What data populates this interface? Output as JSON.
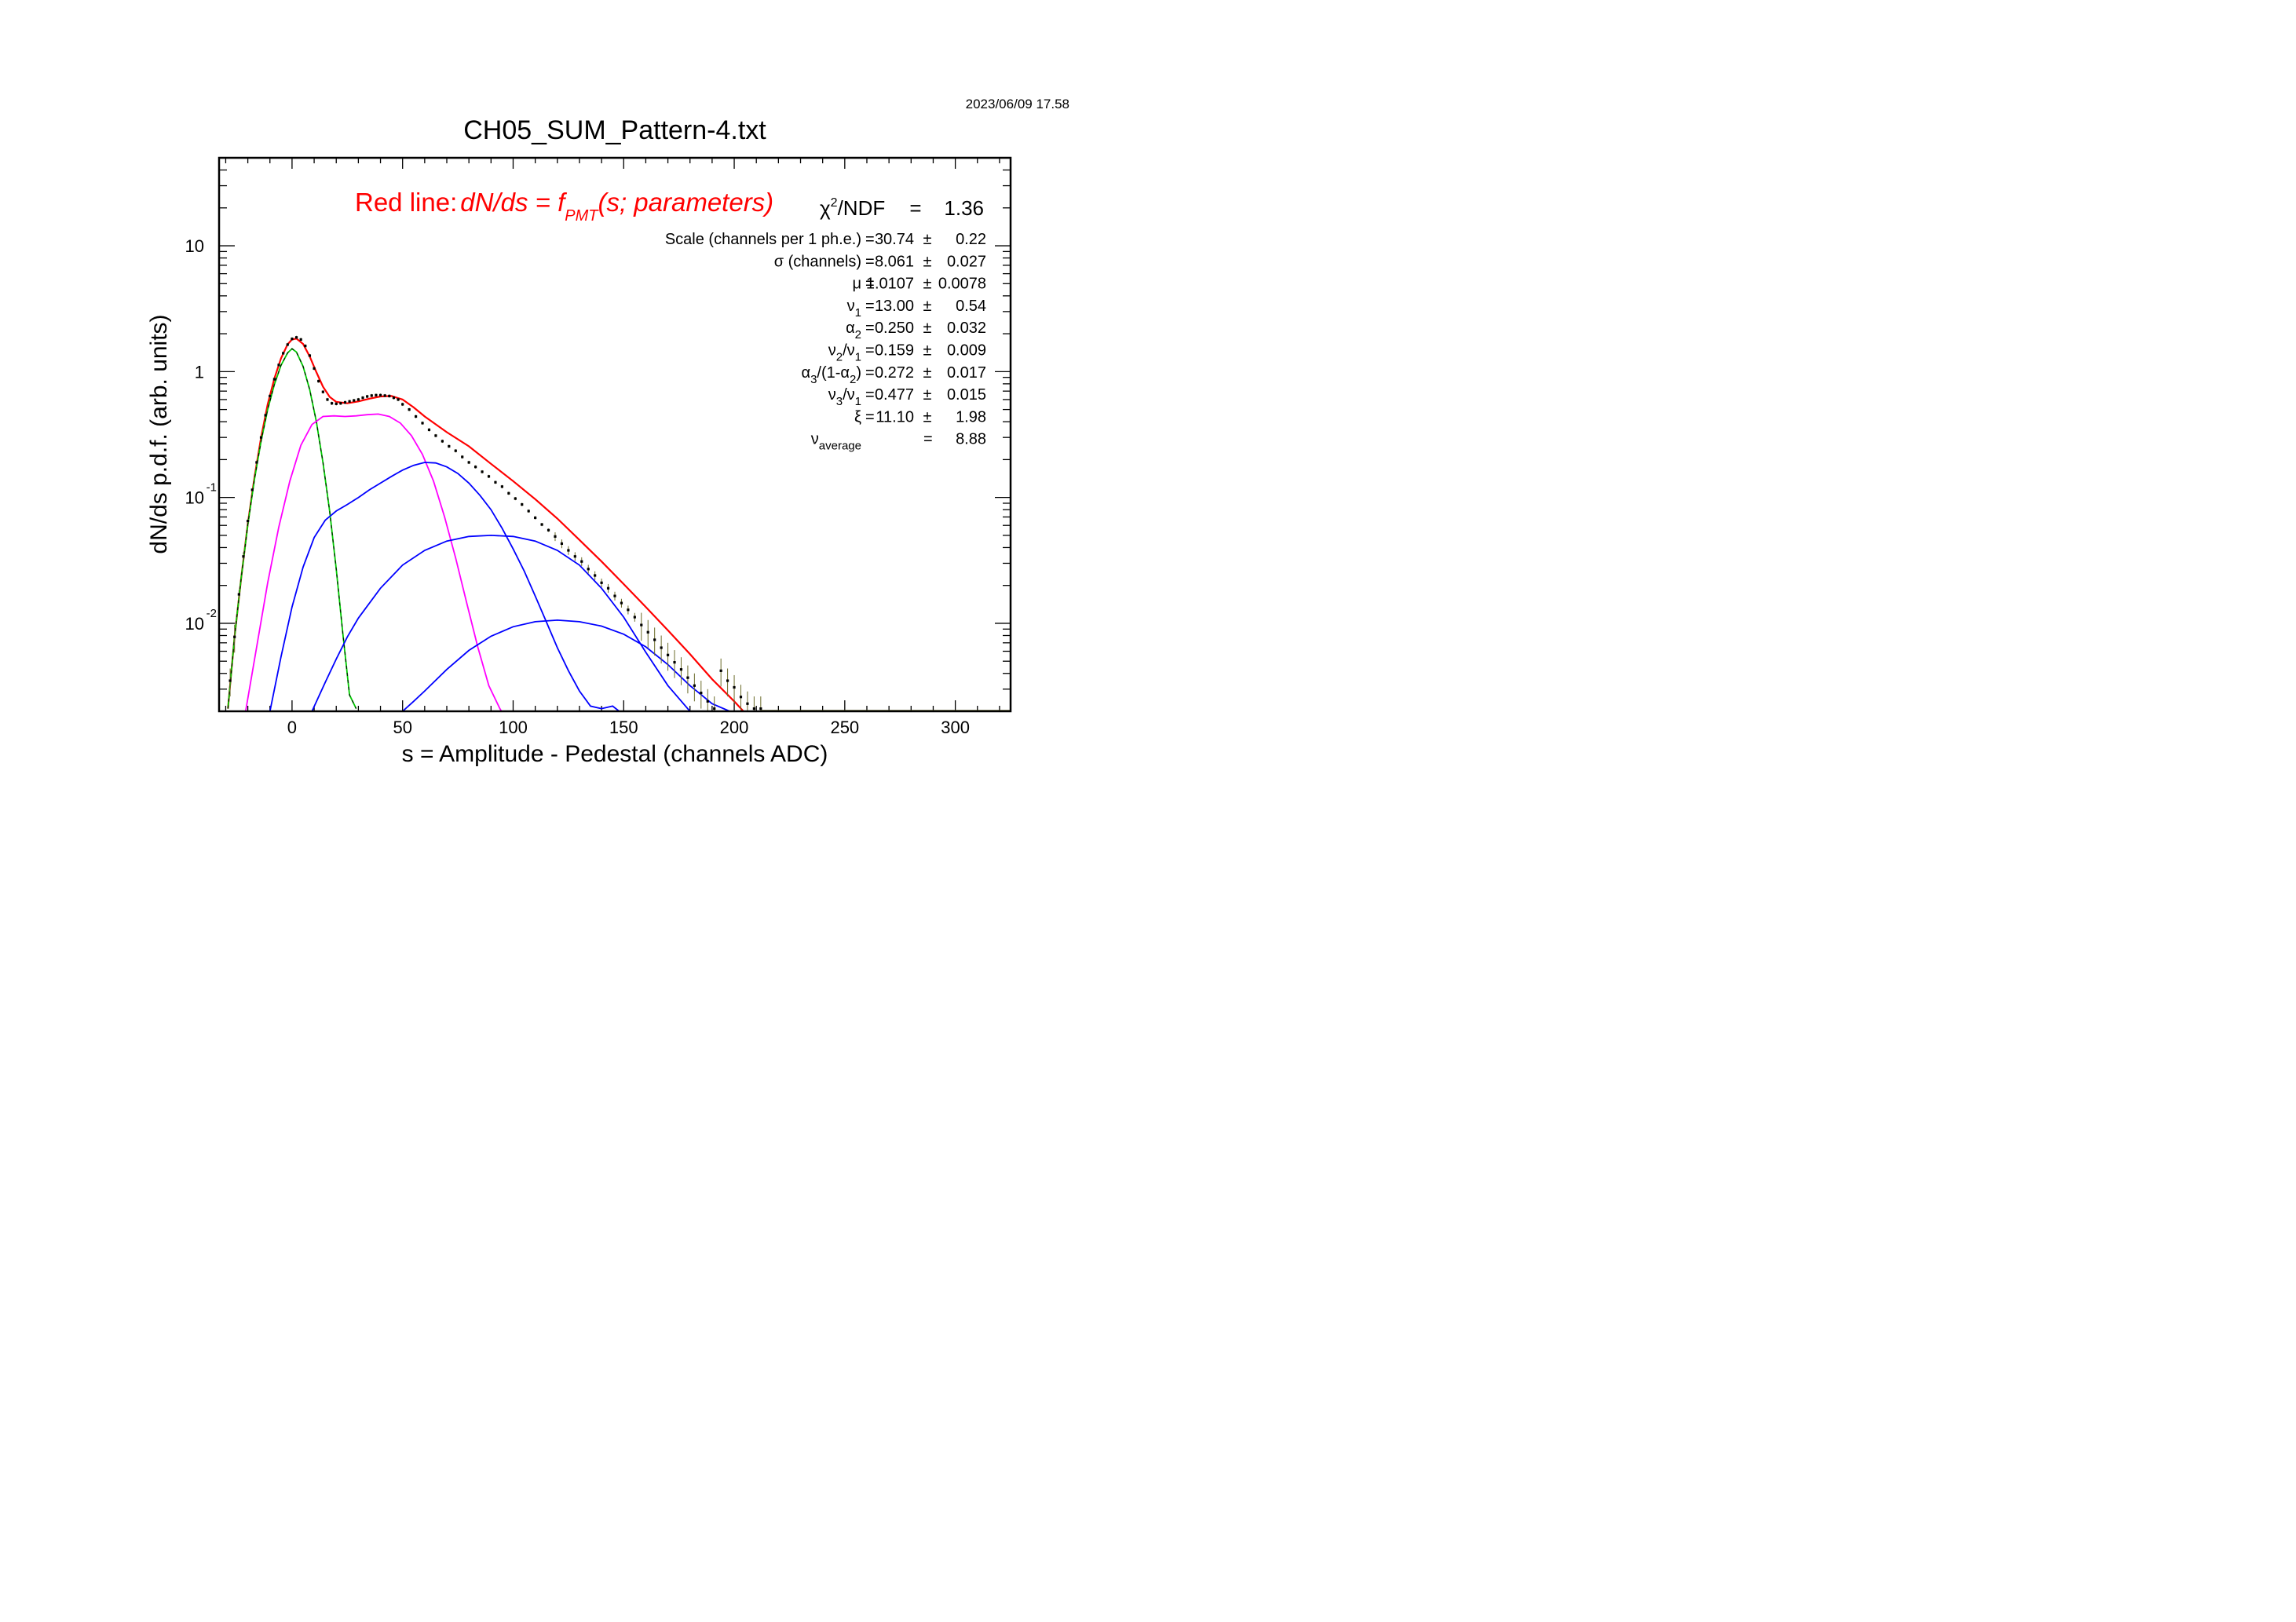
{
  "timestamp": "2023/06/09   17.58",
  "chart_data": {
    "type": "line",
    "title": "CH05_SUM_Pattern-4.txt",
    "xlabel": "s = Amplitude - Pedestal (channels ADC)",
    "ylabel": "dN/ds p.d.f. (arb. units)",
    "xlim": [
      -33,
      325
    ],
    "ylim": [
      0.002,
      50
    ],
    "y_scale": "log",
    "x_ticks": [
      0,
      50,
      100,
      150,
      200,
      250,
      300
    ],
    "x_tick_labels": [
      "0",
      "50",
      "100",
      "150",
      "200",
      "250",
      "300"
    ],
    "y_tick_labels": [
      {
        "value": 10,
        "base": "10",
        "exp": ""
      },
      {
        "value": 1,
        "base": "1",
        "exp": ""
      },
      {
        "value": 0.1,
        "base": "10",
        "exp": "-1"
      },
      {
        "value": 0.01,
        "base": "10",
        "exp": "-2"
      }
    ],
    "fit_label": {
      "prefix": "Red line:",
      "lhs": "dN/ds = f",
      "sub": "PMT",
      "rhs": "(s; parameters)"
    },
    "chi2": {
      "name": "χ",
      "sup": "2",
      "rest": "/NDF",
      "eq": "=",
      "value": "1.36"
    },
    "parameters": [
      {
        "name": "Scale (channels per 1 ph.e.)",
        "sub": "",
        "name2": "",
        "sub2": "",
        "name3": "",
        "value": "30.74",
        "pm": "±",
        "error": "0.22"
      },
      {
        "name": "σ (channels)",
        "sub": "",
        "name2": "",
        "sub2": "",
        "name3": "",
        "value": "8.061",
        "pm": "±",
        "error": "0.027"
      },
      {
        "name": "μ",
        "sub": "",
        "name2": "",
        "sub2": "",
        "name3": "",
        "value": "1.0107",
        "pm": "±",
        "error": "0.0078"
      },
      {
        "name": "ν",
        "sub": "1",
        "name2": "",
        "sub2": "",
        "name3": "",
        "value": "13.00",
        "pm": "±",
        "error": "0.54"
      },
      {
        "name": "α",
        "sub": "2",
        "name2": "",
        "sub2": "",
        "name3": "",
        "value": "0.250",
        "pm": "±",
        "error": "0.032"
      },
      {
        "name": "ν",
        "sub": "2",
        "name2": "/ν",
        "sub2": "1",
        "name3": "",
        "value": "0.159",
        "pm": "±",
        "error": "0.009"
      },
      {
        "name": "α",
        "sub": "3",
        "name2": "/(1-α",
        "sub2": "2",
        "name3": ")",
        "value": "0.272",
        "pm": "±",
        "error": "0.017"
      },
      {
        "name": "ν",
        "sub": "3",
        "name2": "/ν",
        "sub2": "1",
        "name3": "",
        "value": "0.477",
        "pm": "±",
        "error": "0.015"
      },
      {
        "name": "ξ",
        "sub": "",
        "name2": "",
        "sub2": "",
        "name3": "",
        "value": "11.10",
        "pm": "±",
        "error": "1.98"
      },
      {
        "name": "ν",
        "sub": "average",
        "name2": "",
        "sub2": "",
        "name3": "",
        "value": "8.88",
        "pm": "",
        "error": ""
      }
    ],
    "series": [
      {
        "role": "data",
        "color": "#000000",
        "error_color": "#6b6b2a",
        "x": [
          -28,
          -26,
          -24,
          -22,
          -20,
          -18,
          -16,
          -14,
          -12,
          -10,
          -8,
          -6,
          -4,
          -2,
          0,
          2,
          4,
          6,
          8,
          10,
          12,
          14,
          16,
          18,
          20,
          22,
          24,
          26,
          28,
          30,
          32,
          34,
          36,
          38,
          40,
          42,
          44,
          46,
          48,
          50,
          53,
          56,
          59,
          62,
          65,
          68,
          71,
          74,
          77,
          80,
          83,
          86,
          89,
          92,
          95,
          98,
          101,
          104,
          107,
          110,
          113,
          116,
          119,
          122,
          125,
          128,
          131,
          134,
          137,
          140,
          143,
          146,
          149,
          152,
          155,
          158,
          161,
          164,
          167,
          170,
          173,
          176,
          179,
          182,
          185,
          188,
          191,
          194,
          197,
          200,
          203,
          206,
          209,
          212
        ],
        "y": [
          0.0035,
          0.0078,
          0.017,
          0.034,
          0.065,
          0.115,
          0.19,
          0.3,
          0.45,
          0.64,
          0.87,
          1.13,
          1.4,
          1.64,
          1.82,
          1.87,
          1.8,
          1.6,
          1.34,
          1.06,
          0.84,
          0.69,
          0.6,
          0.56,
          0.555,
          0.56,
          0.57,
          0.58,
          0.59,
          0.6,
          0.62,
          0.635,
          0.645,
          0.65,
          0.65,
          0.645,
          0.64,
          0.62,
          0.6,
          0.55,
          0.5,
          0.44,
          0.39,
          0.345,
          0.31,
          0.28,
          0.255,
          0.235,
          0.21,
          0.19,
          0.175,
          0.16,
          0.147,
          0.132,
          0.122,
          0.108,
          0.098,
          0.088,
          0.078,
          0.069,
          0.061,
          0.055,
          0.049,
          0.043,
          0.038,
          0.034,
          0.031,
          0.027,
          0.024,
          0.021,
          0.019,
          0.0165,
          0.0145,
          0.0128,
          0.0112,
          0.0097,
          0.0085,
          0.0074,
          0.0064,
          0.0056,
          0.0049,
          0.0043,
          0.0037,
          0.0032,
          0.0028,
          0.0024,
          0.0021,
          0.0042,
          0.0035,
          0.0031,
          0.0026,
          0.0023,
          0.0021,
          0.0021
        ]
      },
      {
        "role": "fit",
        "color": "#ff0000",
        "x": [
          -29,
          -26,
          -23,
          -20,
          -17,
          -14,
          -11,
          -8,
          -5,
          -2,
          0,
          2,
          5,
          8,
          11,
          14,
          17,
          20,
          25,
          30,
          35,
          40,
          45,
          50,
          55,
          60,
          70,
          80,
          90,
          100,
          110,
          120,
          130,
          140,
          150,
          160,
          170,
          180,
          190,
          200,
          210,
          213
        ],
        "y": [
          0.0021,
          0.0078,
          0.023,
          0.062,
          0.145,
          0.3,
          0.55,
          0.88,
          1.27,
          1.65,
          1.8,
          1.83,
          1.66,
          1.32,
          0.99,
          0.76,
          0.63,
          0.575,
          0.56,
          0.58,
          0.61,
          0.635,
          0.64,
          0.6,
          0.52,
          0.44,
          0.33,
          0.255,
          0.185,
          0.135,
          0.097,
          0.068,
          0.046,
          0.031,
          0.0205,
          0.0135,
          0.0088,
          0.0057,
          0.0036,
          0.0024,
          0.00155,
          0.0013
        ]
      },
      {
        "role": "pedestal",
        "color": "#00cc00",
        "x": [
          -29,
          -26,
          -23,
          -20,
          -17,
          -14,
          -11,
          -8,
          -5,
          -2,
          0,
          2,
          5,
          8,
          11,
          14,
          17,
          20,
          23,
          26,
          29
        ],
        "y": [
          0.0021,
          0.0078,
          0.023,
          0.061,
          0.14,
          0.28,
          0.5,
          0.79,
          1.12,
          1.41,
          1.52,
          1.43,
          1.1,
          0.72,
          0.4,
          0.19,
          0.078,
          0.027,
          0.0082,
          0.0027,
          0.0021
        ]
      },
      {
        "role": "component",
        "color": "#ff00ff",
        "x": [
          -21,
          -16,
          -11,
          -6,
          -1,
          4,
          9,
          14,
          19,
          24,
          29,
          34,
          39,
          44,
          49,
          54,
          59,
          64,
          69,
          74,
          79,
          84,
          89,
          94,
          99
        ],
        "y": [
          0.002,
          0.0065,
          0.021,
          0.058,
          0.135,
          0.26,
          0.38,
          0.44,
          0.445,
          0.44,
          0.445,
          0.455,
          0.46,
          0.44,
          0.39,
          0.31,
          0.22,
          0.135,
          0.07,
          0.033,
          0.0145,
          0.0065,
          0.0032,
          0.0021,
          0.0015
        ]
      },
      {
        "role": "component",
        "color": "#0000ff",
        "x": [
          -10,
          -5,
          0,
          5,
          10,
          15,
          20,
          25,
          30,
          35,
          40,
          45,
          50,
          55,
          60,
          65,
          70,
          75,
          80,
          85,
          90,
          95,
          100,
          105,
          110,
          115,
          120,
          125,
          130,
          135,
          140,
          145,
          148
        ],
        "y": [
          0.002,
          0.0054,
          0.0135,
          0.028,
          0.048,
          0.066,
          0.078,
          0.088,
          0.1,
          0.115,
          0.13,
          0.147,
          0.165,
          0.18,
          0.19,
          0.188,
          0.175,
          0.155,
          0.13,
          0.104,
          0.08,
          0.057,
          0.039,
          0.026,
          0.0165,
          0.0103,
          0.0064,
          0.0042,
          0.0029,
          0.0022,
          0.0021,
          0.0022,
          0.002
        ]
      },
      {
        "role": "component",
        "color": "#0000ff",
        "x": [
          9,
          15,
          20,
          25,
          30,
          40,
          50,
          60,
          70,
          80,
          90,
          100,
          110,
          120,
          130,
          140,
          150,
          160,
          170,
          180
        ],
        "y": [
          0.002,
          0.0034,
          0.0052,
          0.0078,
          0.011,
          0.019,
          0.029,
          0.038,
          0.045,
          0.049,
          0.05,
          0.049,
          0.045,
          0.038,
          0.029,
          0.019,
          0.0112,
          0.0059,
          0.0032,
          0.002
        ]
      },
      {
        "role": "component",
        "color": "#0000ff",
        "x": [
          50,
          55,
          60,
          70,
          80,
          90,
          100,
          110,
          120,
          130,
          140,
          150,
          160,
          170,
          180,
          190,
          198
        ],
        "y": [
          0.002,
          0.0024,
          0.0029,
          0.0043,
          0.0061,
          0.0079,
          0.0094,
          0.0103,
          0.0106,
          0.0103,
          0.0095,
          0.0082,
          0.0065,
          0.0047,
          0.0032,
          0.0023,
          0.002
        ]
      }
    ]
  }
}
